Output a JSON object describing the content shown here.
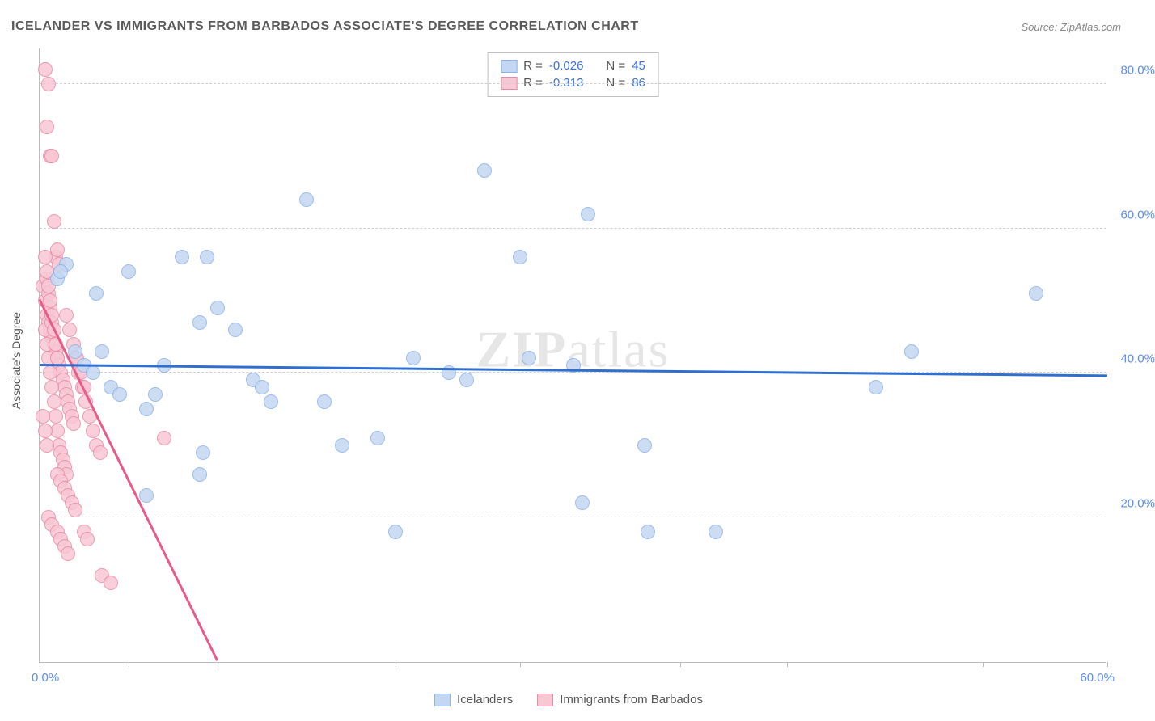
{
  "title": "ICELANDER VS IMMIGRANTS FROM BARBADOS ASSOCIATE'S DEGREE CORRELATION CHART",
  "source": "Source: ZipAtlas.com",
  "ylabel": "Associate's Degree",
  "watermark": "ZIPatlas",
  "chart": {
    "type": "scatter",
    "xlim": [
      0,
      60
    ],
    "ylim": [
      0,
      85
    ],
    "xtick_positions": [
      0,
      5,
      10,
      20,
      27,
      36,
      42,
      53,
      60
    ],
    "xtick_labels": {
      "start": "0.0%",
      "end": "60.0%"
    },
    "ytick_positions": [
      20,
      40,
      60,
      80
    ],
    "ytick_labels": [
      "20.0%",
      "40.0%",
      "60.0%",
      "80.0%"
    ],
    "background_color": "#ffffff",
    "grid_color": "#d0d0d0",
    "axis_color": "#bbbbbb",
    "tick_label_color": "#5b8def",
    "marker_radius": 9,
    "marker_stroke_width": 1.5,
    "series": [
      {
        "name": "Icelanders",
        "color_fill": "#c3d7f2",
        "color_stroke": "#8cb3e8",
        "R": "-0.026",
        "N": "45",
        "trend": {
          "x1": 0,
          "y1": 41,
          "x2": 60,
          "y2": 39.5,
          "color": "#2f6fd0",
          "width": 2.5
        },
        "points": [
          [
            1,
            53
          ],
          [
            1.5,
            55
          ],
          [
            5,
            54
          ],
          [
            2,
            43
          ],
          [
            2.5,
            41
          ],
          [
            3,
            40
          ],
          [
            3.5,
            43
          ],
          [
            4,
            38
          ],
          [
            4.5,
            37
          ],
          [
            6,
            35
          ],
          [
            6.5,
            37
          ],
          [
            7,
            41
          ],
          [
            8,
            56
          ],
          [
            9,
            47
          ],
          [
            10,
            49
          ],
          [
            11,
            46
          ],
          [
            12,
            39
          ],
          [
            12.5,
            38
          ],
          [
            13,
            36
          ],
          [
            15,
            64
          ],
          [
            16,
            36
          ],
          [
            17,
            30
          ],
          [
            19,
            31
          ],
          [
            20,
            18
          ],
          [
            21,
            42
          ],
          [
            23,
            40
          ],
          [
            24,
            39
          ],
          [
            25,
            68
          ],
          [
            27,
            56
          ],
          [
            27.5,
            42
          ],
          [
            30,
            41
          ],
          [
            30.5,
            22
          ],
          [
            30.8,
            62
          ],
          [
            34,
            30
          ],
          [
            34.2,
            18
          ],
          [
            38,
            18
          ],
          [
            47,
            38
          ],
          [
            49,
            43
          ],
          [
            56,
            51
          ],
          [
            6,
            23
          ],
          [
            9,
            26
          ],
          [
            9.2,
            29
          ],
          [
            9.4,
            56
          ],
          [
            1.2,
            54
          ],
          [
            3.2,
            51
          ]
        ]
      },
      {
        "name": "Immigrants from Barbados",
        "color_fill": "#f7c7d4",
        "color_stroke": "#eb8aa6",
        "R": "-0.313",
        "N": "86",
        "trend": {
          "x1": 0,
          "y1": 50,
          "x2": 10,
          "y2": 0,
          "color": "#e85a87",
          "width": 2.5
        },
        "points": [
          [
            0.3,
            82
          ],
          [
            0.5,
            80
          ],
          [
            0.4,
            74
          ],
          [
            0.6,
            70
          ],
          [
            0.7,
            70
          ],
          [
            0.8,
            61
          ],
          [
            0.9,
            56
          ],
          [
            1,
            57
          ],
          [
            1.1,
            55
          ],
          [
            0.2,
            52
          ],
          [
            0.3,
            50
          ],
          [
            0.4,
            48
          ],
          [
            0.5,
            47
          ],
          [
            0.6,
            46
          ],
          [
            0.7,
            45
          ],
          [
            0.8,
            44
          ],
          [
            0.9,
            43
          ],
          [
            1,
            42
          ],
          [
            1.1,
            41
          ],
          [
            1.2,
            40
          ],
          [
            1.3,
            39
          ],
          [
            1.4,
            38
          ],
          [
            1.5,
            37
          ],
          [
            1.6,
            36
          ],
          [
            1.7,
            35
          ],
          [
            1.8,
            34
          ],
          [
            1.9,
            33
          ],
          [
            0.3,
            46
          ],
          [
            0.4,
            44
          ],
          [
            0.5,
            42
          ],
          [
            0.6,
            40
          ],
          [
            0.7,
            38
          ],
          [
            0.8,
            36
          ],
          [
            0.9,
            34
          ],
          [
            1,
            32
          ],
          [
            1.1,
            30
          ],
          [
            1.2,
            29
          ],
          [
            1.3,
            28
          ],
          [
            1.4,
            27
          ],
          [
            1.5,
            26
          ],
          [
            0.4,
            53
          ],
          [
            0.5,
            51
          ],
          [
            0.6,
            49
          ],
          [
            0.7,
            47
          ],
          [
            2,
            42
          ],
          [
            2.2,
            40
          ],
          [
            2.4,
            38
          ],
          [
            2.6,
            36
          ],
          [
            2.8,
            34
          ],
          [
            3,
            32
          ],
          [
            3.2,
            30
          ],
          [
            3.4,
            29
          ],
          [
            1,
            26
          ],
          [
            1.2,
            25
          ],
          [
            1.4,
            24
          ],
          [
            1.6,
            23
          ],
          [
            1.8,
            22
          ],
          [
            2,
            21
          ],
          [
            0.5,
            20
          ],
          [
            0.7,
            19
          ],
          [
            1,
            18
          ],
          [
            1.2,
            17
          ],
          [
            1.4,
            16
          ],
          [
            1.6,
            15
          ],
          [
            2.5,
            18
          ],
          [
            2.7,
            17
          ],
          [
            3.5,
            12
          ],
          [
            4,
            11
          ],
          [
            0.3,
            56
          ],
          [
            0.4,
            54
          ],
          [
            0.5,
            52
          ],
          [
            0.6,
            50
          ],
          [
            0.7,
            48
          ],
          [
            0.8,
            46
          ],
          [
            0.9,
            44
          ],
          [
            1,
            42
          ],
          [
            7,
            31
          ],
          [
            1.5,
            48
          ],
          [
            1.7,
            46
          ],
          [
            1.9,
            44
          ],
          [
            2.1,
            42
          ],
          [
            2.3,
            40
          ],
          [
            2.5,
            38
          ],
          [
            0.2,
            34
          ],
          [
            0.3,
            32
          ],
          [
            0.4,
            30
          ]
        ]
      }
    ]
  },
  "legend_top": {
    "rows": [
      {
        "swatch_fill": "#c3d7f2",
        "swatch_stroke": "#8cb3e8",
        "r_label": "R =",
        "r_val": "-0.026",
        "n_label": "N =",
        "n_val": "45"
      },
      {
        "swatch_fill": "#f7c7d4",
        "swatch_stroke": "#eb8aa6",
        "r_label": "R =",
        "r_val": "-0.313",
        "n_label": "N =",
        "n_val": "86"
      }
    ]
  },
  "legend_bottom": [
    {
      "swatch_fill": "#c3d7f2",
      "swatch_stroke": "#8cb3e8",
      "label": "Icelanders"
    },
    {
      "swatch_fill": "#f7c7d4",
      "swatch_stroke": "#eb8aa6",
      "label": "Immigrants from Barbados"
    }
  ]
}
